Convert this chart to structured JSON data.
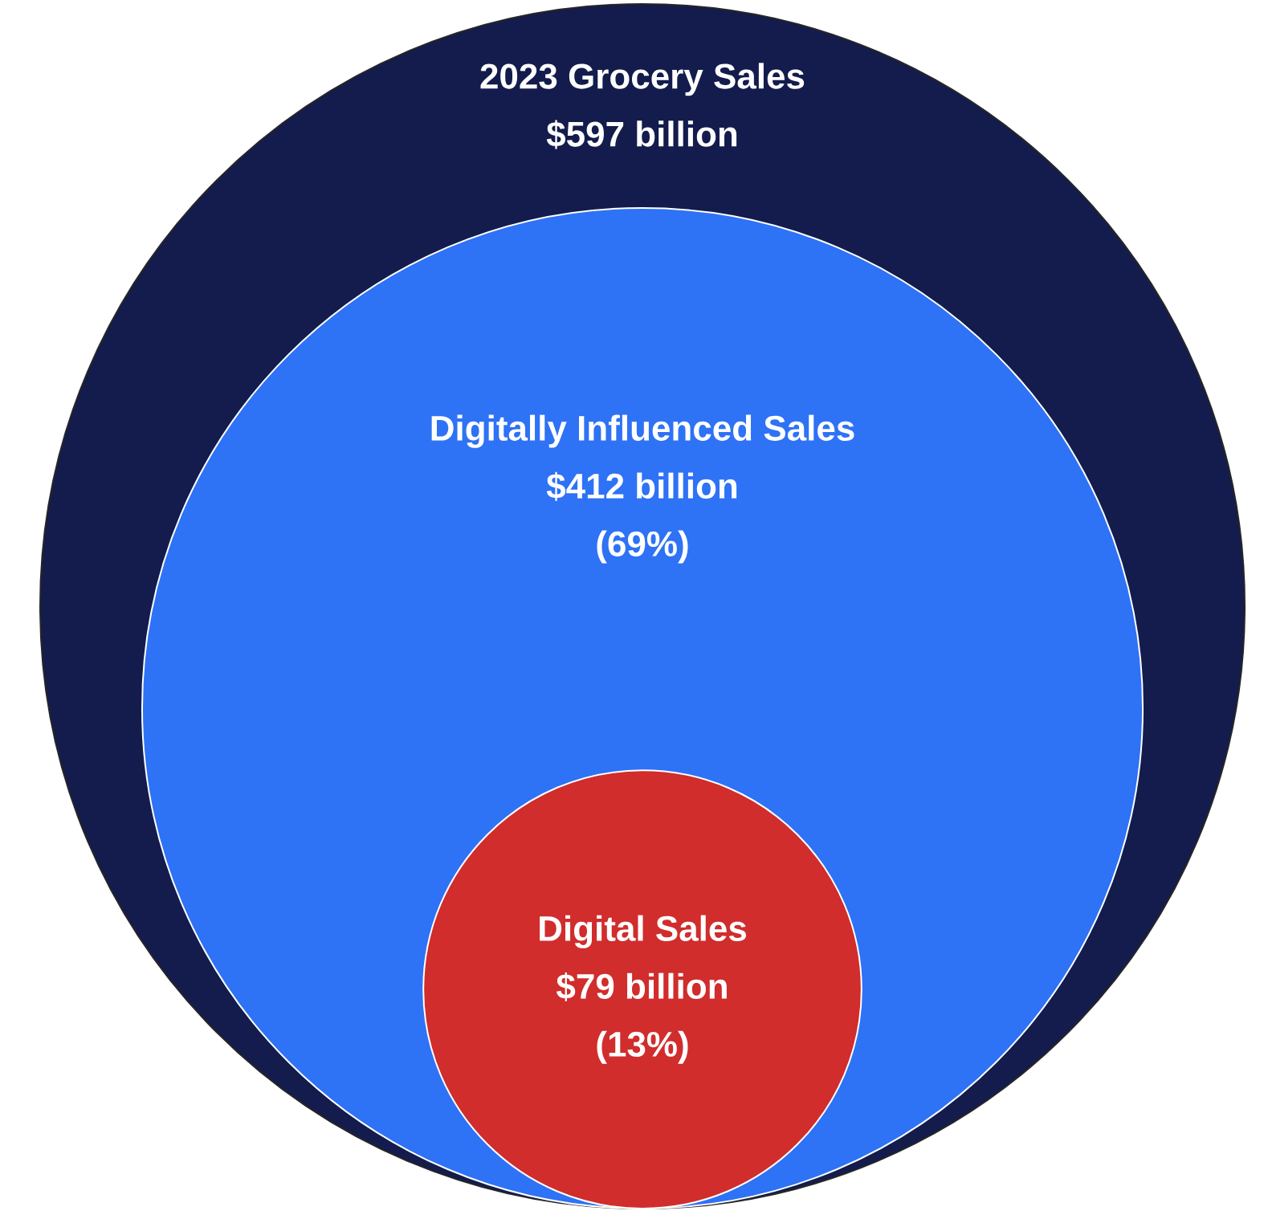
{
  "chart_data": {
    "type": "other",
    "categories": [
      "2023 Grocery Sales",
      "Digitally Influenced Sales",
      "Digital Sales"
    ],
    "values": [
      597,
      412,
      79
    ],
    "value_labels": [
      "$597 billion",
      "$412 billion",
      "$79 billion"
    ],
    "colors": [
      "#131c4c",
      "#2e72f5",
      "#d02d2c"
    ],
    "annotations": [
      {
        "text": "(69%)",
        "x": "Digitally Influenced Sales"
      },
      {
        "text": "(13%)",
        "x": "Digital Sales"
      }
    ]
  }
}
